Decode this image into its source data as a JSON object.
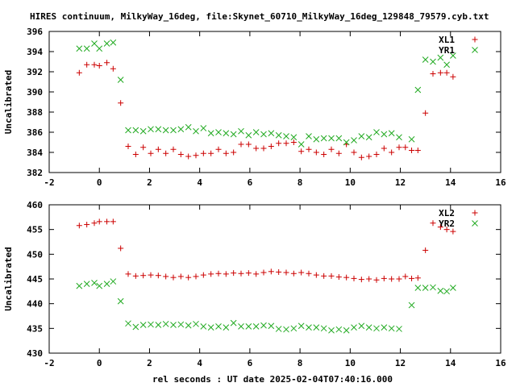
{
  "title": "HIRES continuum, MilkyWay_16deg, file:Skynet_60710_MilkyWay_16deg_129848_79579.cyb.txt",
  "xlabel": "rel seconds : UT date 2025-02-04T07:40:16.000",
  "colors": {
    "series_a": "#cc0000",
    "series_b": "#22aa22",
    "frame": "#000000",
    "background": "#ffffff"
  },
  "chart_data": [
    {
      "type": "scatter",
      "ylabel": "Uncalibrated",
      "xlim": [
        -2,
        16
      ],
      "ylim": [
        382,
        396
      ],
      "xticks": [
        -2,
        0,
        2,
        4,
        6,
        8,
        10,
        12,
        14,
        16
      ],
      "yticks": [
        382,
        384,
        386,
        388,
        390,
        392,
        394,
        396
      ],
      "grid": false,
      "legend_position": "top-right",
      "series": [
        {
          "name": "XL1",
          "marker": "plus",
          "x": [
            -0.8,
            -0.5,
            -0.2,
            0.0,
            0.3,
            0.55,
            0.85,
            1.15,
            1.45,
            1.75,
            2.05,
            2.35,
            2.65,
            2.95,
            3.25,
            3.55,
            3.85,
            4.15,
            4.45,
            4.75,
            5.05,
            5.35,
            5.65,
            5.95,
            6.25,
            6.55,
            6.85,
            7.15,
            7.45,
            7.75,
            8.05,
            8.35,
            8.65,
            8.95,
            9.25,
            9.55,
            9.85,
            10.15,
            10.45,
            10.75,
            11.05,
            11.35,
            11.65,
            11.95,
            12.2,
            12.45,
            12.7,
            13.0,
            13.3,
            13.6,
            13.85,
            14.1
          ],
          "y": [
            391.9,
            392.7,
            392.7,
            392.6,
            392.9,
            392.3,
            388.9,
            384.6,
            383.8,
            384.5,
            383.9,
            384.3,
            383.9,
            384.3,
            383.8,
            383.6,
            383.7,
            383.9,
            383.9,
            384.3,
            383.9,
            384.0,
            384.8,
            384.8,
            384.4,
            384.4,
            384.6,
            384.9,
            384.9,
            385.0,
            384.1,
            384.3,
            384.0,
            383.8,
            384.3,
            383.9,
            384.8,
            384.0,
            383.5,
            383.6,
            383.8,
            384.4,
            384.0,
            384.5,
            384.5,
            384.2,
            384.2,
            387.9,
            391.8,
            391.9,
            391.9,
            391.5
          ],
          "note_skip": false
        },
        {
          "name": "YR1",
          "marker": "cross",
          "x": [
            -0.8,
            -0.5,
            -0.2,
            0.0,
            0.3,
            0.55,
            0.85,
            1.15,
            1.45,
            1.75,
            2.05,
            2.35,
            2.65,
            2.95,
            3.25,
            3.55,
            3.85,
            4.15,
            4.45,
            4.75,
            5.05,
            5.35,
            5.65,
            5.95,
            6.25,
            6.55,
            6.85,
            7.15,
            7.45,
            7.75,
            8.05,
            8.35,
            8.65,
            8.95,
            9.25,
            9.55,
            9.85,
            10.15,
            10.45,
            10.75,
            11.05,
            11.35,
            11.65,
            11.95,
            12.45,
            12.7,
            13.0,
            13.3,
            13.6,
            13.85,
            14.1
          ],
          "y": [
            394.3,
            394.3,
            394.8,
            394.3,
            394.8,
            394.9,
            391.2,
            386.2,
            386.2,
            386.1,
            386.3,
            386.3,
            386.2,
            386.2,
            386.3,
            386.5,
            386.1,
            386.4,
            385.9,
            386.0,
            385.9,
            385.8,
            386.1,
            385.7,
            386.0,
            385.8,
            385.9,
            385.7,
            385.6,
            385.5,
            384.8,
            385.6,
            385.3,
            385.4,
            385.4,
            385.4,
            385.0,
            385.2,
            385.6,
            385.5,
            386.0,
            385.8,
            385.9,
            385.5,
            385.3,
            390.2,
            393.2,
            393.0,
            393.4,
            392.7,
            393.6
          ]
        }
      ]
    },
    {
      "type": "scatter",
      "ylabel": "Uncalibrated",
      "xlim": [
        -2,
        16
      ],
      "ylim": [
        430,
        460
      ],
      "xticks": [
        -2,
        0,
        2,
        4,
        6,
        8,
        10,
        12,
        14,
        16
      ],
      "yticks": [
        430,
        435,
        440,
        445,
        450,
        455,
        460
      ],
      "grid": false,
      "legend_position": "top-right",
      "series": [
        {
          "name": "XL2",
          "marker": "plus",
          "x": [
            -0.8,
            -0.5,
            -0.2,
            0.0,
            0.3,
            0.55,
            0.85,
            1.15,
            1.45,
            1.75,
            2.05,
            2.35,
            2.65,
            2.95,
            3.25,
            3.55,
            3.85,
            4.15,
            4.45,
            4.75,
            5.05,
            5.35,
            5.65,
            5.95,
            6.25,
            6.55,
            6.85,
            7.15,
            7.45,
            7.75,
            8.05,
            8.35,
            8.65,
            8.95,
            9.25,
            9.55,
            9.85,
            10.15,
            10.45,
            10.75,
            11.05,
            11.35,
            11.65,
            11.95,
            12.2,
            12.45,
            12.7,
            13.0,
            13.3,
            13.6,
            13.85,
            14.1
          ],
          "y": [
            455.8,
            456.0,
            456.3,
            456.6,
            456.6,
            456.6,
            451.2,
            446.0,
            445.6,
            445.7,
            445.8,
            445.7,
            445.5,
            445.3,
            445.5,
            445.3,
            445.5,
            445.8,
            446.0,
            446.1,
            446.0,
            446.2,
            446.1,
            446.2,
            446.0,
            446.3,
            446.5,
            446.4,
            446.3,
            446.1,
            446.3,
            446.1,
            445.8,
            445.6,
            445.6,
            445.4,
            445.3,
            445.1,
            444.9,
            445.0,
            444.8,
            445.1,
            445.0,
            445.0,
            445.5,
            445.1,
            445.2,
            450.8,
            456.3,
            455.5,
            455.0,
            454.6
          ]
        },
        {
          "name": "YR2",
          "marker": "cross",
          "x": [
            -0.8,
            -0.5,
            -0.2,
            0.0,
            0.3,
            0.55,
            0.85,
            1.15,
            1.45,
            1.75,
            2.05,
            2.35,
            2.65,
            2.95,
            3.25,
            3.55,
            3.85,
            4.15,
            4.45,
            4.75,
            5.05,
            5.35,
            5.65,
            5.95,
            6.25,
            6.55,
            6.85,
            7.15,
            7.45,
            7.75,
            8.05,
            8.35,
            8.65,
            8.95,
            9.25,
            9.55,
            9.85,
            10.15,
            10.45,
            10.75,
            11.05,
            11.35,
            11.65,
            11.95,
            12.45,
            12.7,
            13.0,
            13.3,
            13.6,
            13.85,
            14.1
          ],
          "y": [
            443.6,
            444.0,
            444.2,
            443.6,
            444.0,
            444.5,
            440.5,
            436.0,
            435.3,
            435.7,
            435.8,
            435.7,
            435.9,
            435.7,
            435.8,
            435.6,
            435.9,
            435.4,
            435.2,
            435.4,
            435.2,
            436.1,
            435.4,
            435.4,
            435.4,
            435.6,
            435.5,
            434.9,
            434.8,
            435.0,
            435.5,
            435.2,
            435.2,
            435.0,
            434.6,
            434.8,
            434.6,
            435.2,
            435.5,
            435.2,
            435.0,
            435.2,
            435.0,
            434.9,
            439.7,
            443.2,
            443.2,
            443.3,
            442.6,
            442.5,
            443.2
          ]
        }
      ]
    }
  ]
}
